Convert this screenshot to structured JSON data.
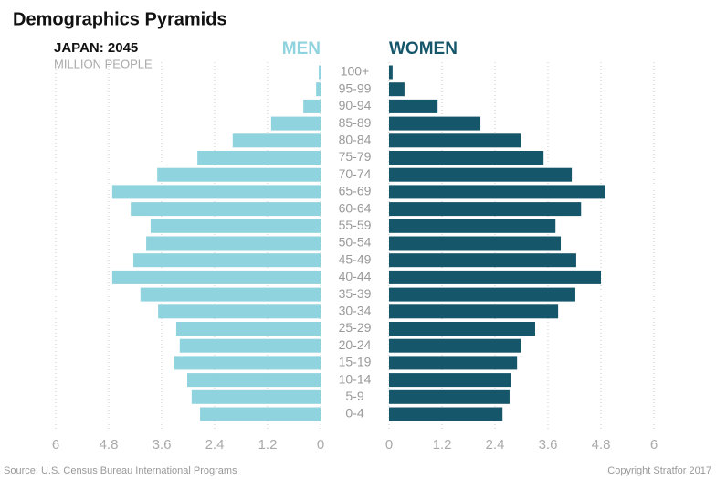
{
  "chart_data": {
    "type": "pyramid",
    "title": "Demographics Pyramids",
    "subtitle": "JAPAN: 2045",
    "unit": "MILLION PEOPLE",
    "source": "Source: U.S. Census Bureau International Programs",
    "copyright": "Copyright Stratfor 2017",
    "grid": true,
    "categories": [
      "100+",
      "95-99",
      "90-94",
      "85-89",
      "80-84",
      "75-79",
      "70-74",
      "65-69",
      "60-64",
      "55-59",
      "50-54",
      "45-49",
      "40-44",
      "35-39",
      "30-34",
      "25-29",
      "20-24",
      "15-19",
      "10-14",
      "5-9",
      "0-4"
    ],
    "series": [
      {
        "name": "MEN",
        "color": "#8fd3de",
        "xlim": [
          6,
          0
        ],
        "xticks": [
          6,
          4.8,
          3.6,
          2.4,
          1.2,
          0
        ],
        "values": [
          0.04,
          0.1,
          0.39,
          1.12,
          1.99,
          2.79,
          3.7,
          4.72,
          4.3,
          3.85,
          3.95,
          4.24,
          4.72,
          4.08,
          3.68,
          3.27,
          3.19,
          3.31,
          3.02,
          2.92,
          2.73
        ]
      },
      {
        "name": "WOMEN",
        "color": "#16566b",
        "xlim": [
          0,
          6
        ],
        "xticks": [
          0,
          1.2,
          2.4,
          3.6,
          4.8,
          6
        ],
        "values": [
          0.08,
          0.35,
          1.1,
          2.07,
          2.98,
          3.5,
          4.14,
          4.9,
          4.35,
          3.77,
          3.89,
          4.24,
          4.8,
          4.22,
          3.83,
          3.31,
          2.98,
          2.9,
          2.77,
          2.73,
          2.57
        ]
      }
    ]
  }
}
